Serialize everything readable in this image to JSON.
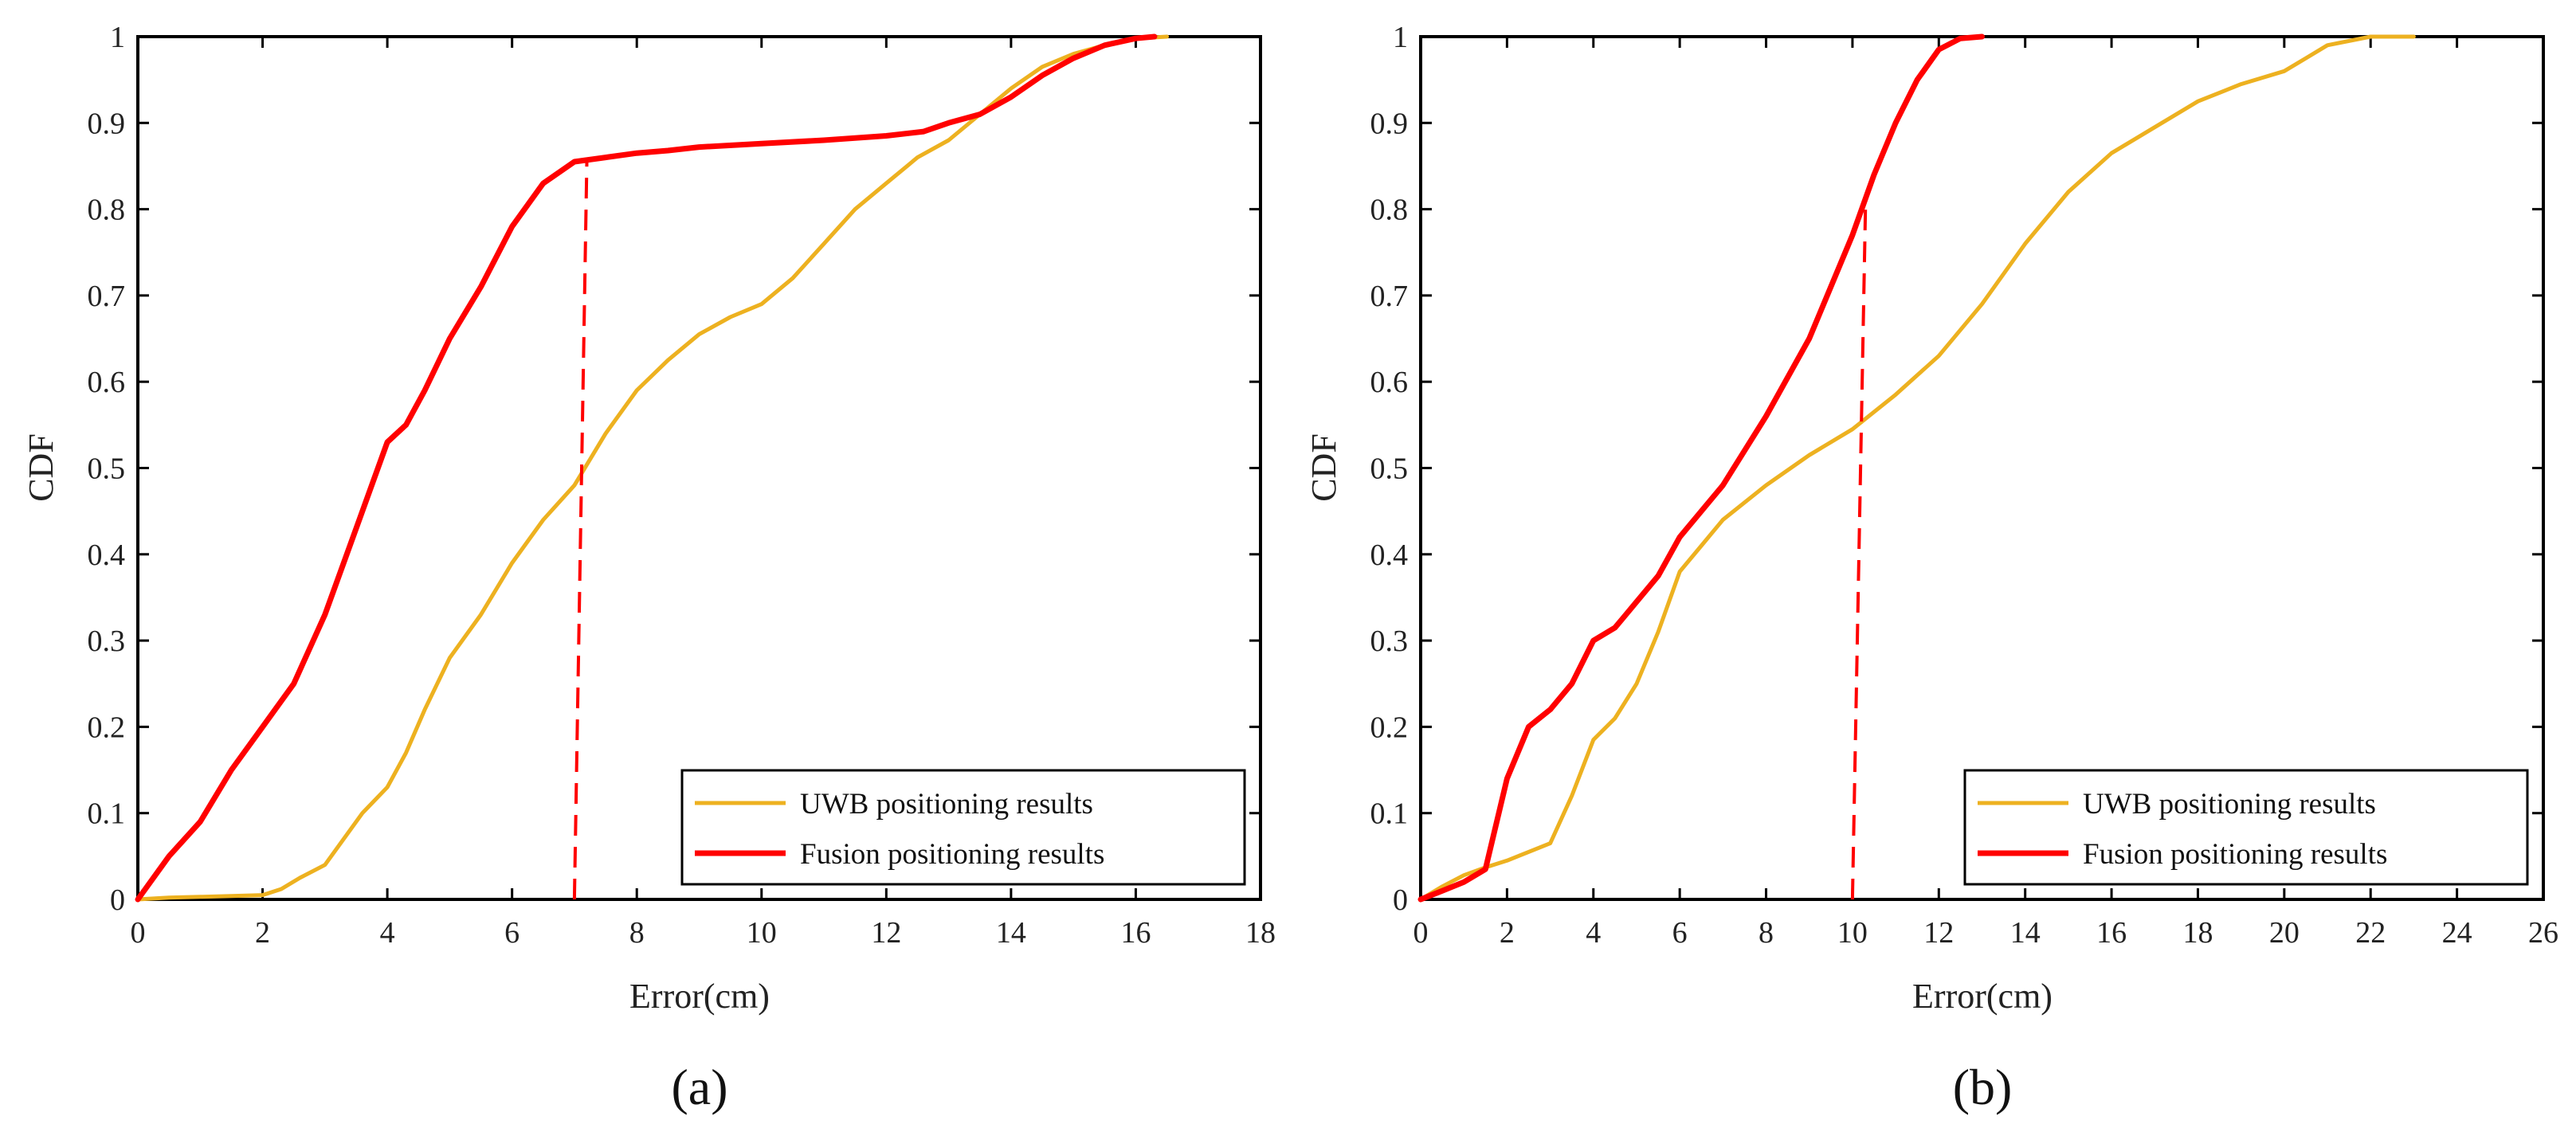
{
  "figure": {
    "colors": {
      "uwb": "#EDB120",
      "fusion": "#FF0000",
      "axis": "#000000",
      "background": "#FFFFFF"
    }
  },
  "chart_data": [
    {
      "type": "line",
      "caption": "(a)",
      "title": "",
      "xlabel": "Error(cm)",
      "ylabel": "CDF",
      "xlim": [
        0,
        18
      ],
      "ylim": [
        0,
        1
      ],
      "xticks": [
        0,
        2,
        4,
        6,
        8,
        10,
        12,
        14,
        16,
        18
      ],
      "yticks": [
        0,
        0.1,
        0.2,
        0.3,
        0.4,
        0.5,
        0.6,
        0.7,
        0.8,
        0.9,
        1
      ],
      "grid": false,
      "legend_position": "bottom-right",
      "series": [
        {
          "name": "UWB positioning results",
          "color": "#EDB120",
          "style": "solid",
          "x": [
            0,
            0.5,
            1,
            1.5,
            2,
            2.3,
            2.6,
            3,
            3.3,
            3.6,
            4,
            4.3,
            4.6,
            5,
            5.5,
            6,
            6.5,
            7,
            7.5,
            8,
            8.5,
            9,
            9.5,
            10,
            10.5,
            11,
            11.5,
            12,
            12.5,
            13,
            13.5,
            14,
            14.5,
            15,
            15.5,
            16,
            16.5
          ],
          "y": [
            0,
            0.002,
            0.003,
            0.004,
            0.005,
            0.012,
            0.025,
            0.04,
            0.07,
            0.1,
            0.13,
            0.17,
            0.22,
            0.28,
            0.33,
            0.39,
            0.44,
            0.48,
            0.54,
            0.59,
            0.625,
            0.655,
            0.675,
            0.69,
            0.72,
            0.76,
            0.8,
            0.83,
            0.86,
            0.88,
            0.91,
            0.94,
            0.965,
            0.98,
            0.99,
            0.998,
            1.0
          ]
        },
        {
          "name": "Fusion positioning results",
          "color": "#FF0000",
          "style": "solid",
          "x": [
            0,
            0.5,
            1,
            1.5,
            2,
            2.5,
            3,
            3.5,
            4,
            4.3,
            4.6,
            5,
            5.5,
            6,
            6.5,
            7,
            7.5,
            8,
            8.5,
            9,
            10,
            11,
            12,
            12.6,
            13,
            13.5,
            14,
            14.5,
            15,
            15.5,
            16,
            16.3
          ],
          "y": [
            0,
            0.05,
            0.09,
            0.15,
            0.2,
            0.25,
            0.33,
            0.43,
            0.53,
            0.55,
            0.59,
            0.65,
            0.71,
            0.78,
            0.83,
            0.855,
            0.86,
            0.865,
            0.868,
            0.872,
            0.876,
            0.88,
            0.885,
            0.89,
            0.9,
            0.91,
            0.93,
            0.955,
            0.975,
            0.99,
            0.998,
            1.0
          ]
        },
        {
          "name": "marker",
          "color": "#FF0000",
          "style": "dashed",
          "x": [
            7.0,
            7.2
          ],
          "y": [
            0,
            0.86
          ]
        }
      ]
    },
    {
      "type": "line",
      "caption": "(b)",
      "title": "",
      "xlabel": "Error(cm)",
      "ylabel": "CDF",
      "xlim": [
        0,
        26
      ],
      "ylim": [
        0,
        1
      ],
      "xticks": [
        0,
        2,
        4,
        6,
        8,
        10,
        12,
        14,
        16,
        18,
        20,
        22,
        24,
        26
      ],
      "yticks": [
        0,
        0.1,
        0.2,
        0.3,
        0.4,
        0.5,
        0.6,
        0.7,
        0.8,
        0.9,
        1
      ],
      "grid": false,
      "legend_position": "bottom-right",
      "series": [
        {
          "name": "UWB positioning results",
          "color": "#EDB120",
          "style": "solid",
          "x": [
            0,
            0.5,
            1,
            1.5,
            2,
            2.5,
            3,
            3.5,
            4,
            4.5,
            5,
            5.5,
            6,
            6.5,
            7,
            8,
            9,
            10,
            11,
            12,
            13,
            14,
            15,
            16,
            17,
            18,
            19,
            20,
            20.5,
            21,
            22,
            23
          ],
          "y": [
            0,
            0.015,
            0.028,
            0.037,
            0.045,
            0.055,
            0.065,
            0.12,
            0.185,
            0.21,
            0.25,
            0.31,
            0.38,
            0.41,
            0.44,
            0.48,
            0.515,
            0.545,
            0.585,
            0.63,
            0.69,
            0.76,
            0.82,
            0.865,
            0.895,
            0.925,
            0.945,
            0.96,
            0.975,
            0.99,
            1.0,
            1.0
          ]
        },
        {
          "name": "Fusion positioning results",
          "color": "#FF0000",
          "style": "solid",
          "x": [
            0,
            0.5,
            1,
            1.5,
            2,
            2.5,
            3,
            3.5,
            4,
            4.5,
            5,
            5.5,
            6,
            7,
            8,
            9,
            10,
            10.5,
            11,
            11.5,
            12,
            12.5,
            13
          ],
          "y": [
            0,
            0.01,
            0.02,
            0.035,
            0.14,
            0.2,
            0.22,
            0.25,
            0.3,
            0.315,
            0.345,
            0.375,
            0.42,
            0.48,
            0.56,
            0.65,
            0.77,
            0.84,
            0.9,
            0.95,
            0.985,
            0.998,
            1.0
          ]
        },
        {
          "name": "marker",
          "color": "#FF0000",
          "style": "dashed",
          "x": [
            10.0,
            10.3
          ],
          "y": [
            0,
            0.8
          ]
        }
      ]
    }
  ]
}
